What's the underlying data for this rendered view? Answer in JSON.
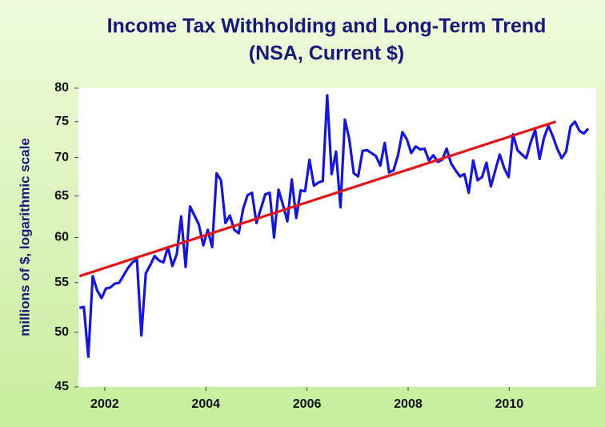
{
  "chart_data": {
    "type": "line",
    "title": "Income Tax Withholding and Long-Term Trend",
    "subtitle": "(NSA, Current $)",
    "y_label": "millions of $, logarithmic scale",
    "ylog": true,
    "ylim": [
      45,
      80
    ],
    "yticks": [
      45,
      50,
      55,
      60,
      65,
      70,
      75,
      80
    ],
    "xlim": [
      2001.48,
      2011.72
    ],
    "xticks": [
      2002,
      2004,
      2006,
      2008,
      2010
    ],
    "series": [
      {
        "color": "#1414e6",
        "x": [
          2001.5,
          2001.5875,
          2001.675,
          2001.7625,
          2001.85,
          2001.9375,
          2002.025,
          2002.1125,
          2002.2,
          2002.2875,
          2002.375,
          2002.4625,
          2002.55,
          2002.6375,
          2002.725,
          2002.8125,
          2002.9,
          2002.9875,
          2003.075,
          2003.1625,
          2003.25,
          2003.3375,
          2003.425,
          2003.5125,
          2003.6,
          2003.6875,
          2003.775,
          2003.8625,
          2003.95,
          2004.0375,
          2004.125,
          2004.2125,
          2004.3,
          2004.3875,
          2004.475,
          2004.5625,
          2004.65,
          2004.7375,
          2004.825,
          2004.9125,
          2005,
          2005.0875,
          2005.175,
          2005.2625,
          2005.35,
          2005.4375,
          2005.525,
          2005.6125,
          2005.7,
          2005.7875,
          2005.875,
          2005.9625,
          2006.05,
          2006.1375,
          2006.225,
          2006.3125,
          2006.4,
          2006.4875,
          2006.575,
          2006.6625,
          2006.75,
          2006.8375,
          2006.925,
          2007.0125,
          2007.1,
          2007.1875,
          2007.275,
          2007.3625,
          2007.45,
          2007.5375,
          2007.625,
          2007.7125,
          2007.8,
          2007.8875,
          2007.975,
          2008.0625,
          2008.15,
          2008.2375,
          2008.325,
          2008.4125,
          2008.5,
          2008.5875,
          2008.675,
          2008.7625,
          2008.85,
          2008.9375,
          2009.025,
          2009.1125,
          2009.2,
          2009.2875,
          2009.375,
          2009.4625,
          2009.55,
          2009.6375,
          2009.725,
          2009.8125,
          2009.9,
          2009.9875,
          2010.075,
          2010.1625,
          2010.25,
          2010.3375,
          2010.425,
          2010.5125,
          2010.6,
          2010.6875,
          2010.775,
          2010.8625,
          2010.95,
          2011.0375,
          2011.125,
          2011.2125,
          2011.3,
          2011.3875,
          2011.475,
          2011.5625
        ],
        "values": [
          52.4,
          52.5,
          47.7,
          55.7,
          54.2,
          53.4,
          54.4,
          54.5,
          54.9,
          55.0,
          55.8,
          56.6,
          57.2,
          57.5,
          49.7,
          56.0,
          56.9,
          57.9,
          57.4,
          57.2,
          58.9,
          56.8,
          58.1,
          62.5,
          56.7,
          63.7,
          62.6,
          61.5,
          59.1,
          60.9,
          58.9,
          67.9,
          67.0,
          61.7,
          62.6,
          60.9,
          60.5,
          63.4,
          65.1,
          65.4,
          61.7,
          63.4,
          65.2,
          65.4,
          60.0,
          65.8,
          63.9,
          61.9,
          67.1,
          62.3,
          65.7,
          65.6,
          69.7,
          66.3,
          66.7,
          66.9,
          78.9,
          67.8,
          70.8,
          63.6,
          75.3,
          72.5,
          67.9,
          67.5,
          70.9,
          71.0,
          70.6,
          70.2,
          68.9,
          72.0,
          68.0,
          68.3,
          70.3,
          73.5,
          72.5,
          70.6,
          71.5,
          71.1,
          71.2,
          69.6,
          70.3,
          69.4,
          69.7,
          71.2,
          69.2,
          68.3,
          67.5,
          67.8,
          65.4,
          69.6,
          67.0,
          67.4,
          69.3,
          66.2,
          68.3,
          70.4,
          68.6,
          67.4,
          73.2,
          71.0,
          70.4,
          69.9,
          72.1,
          73.8,
          69.8,
          72.7,
          74.4,
          72.9,
          71.2,
          69.9,
          70.8,
          74.3,
          75.0,
          73.7,
          73.3,
          74.0
        ]
      },
      {
        "color": "#e61414",
        "x": [
          2001.5,
          2010.92
        ],
        "values": [
          55.7,
          75.0
        ]
      }
    ]
  }
}
